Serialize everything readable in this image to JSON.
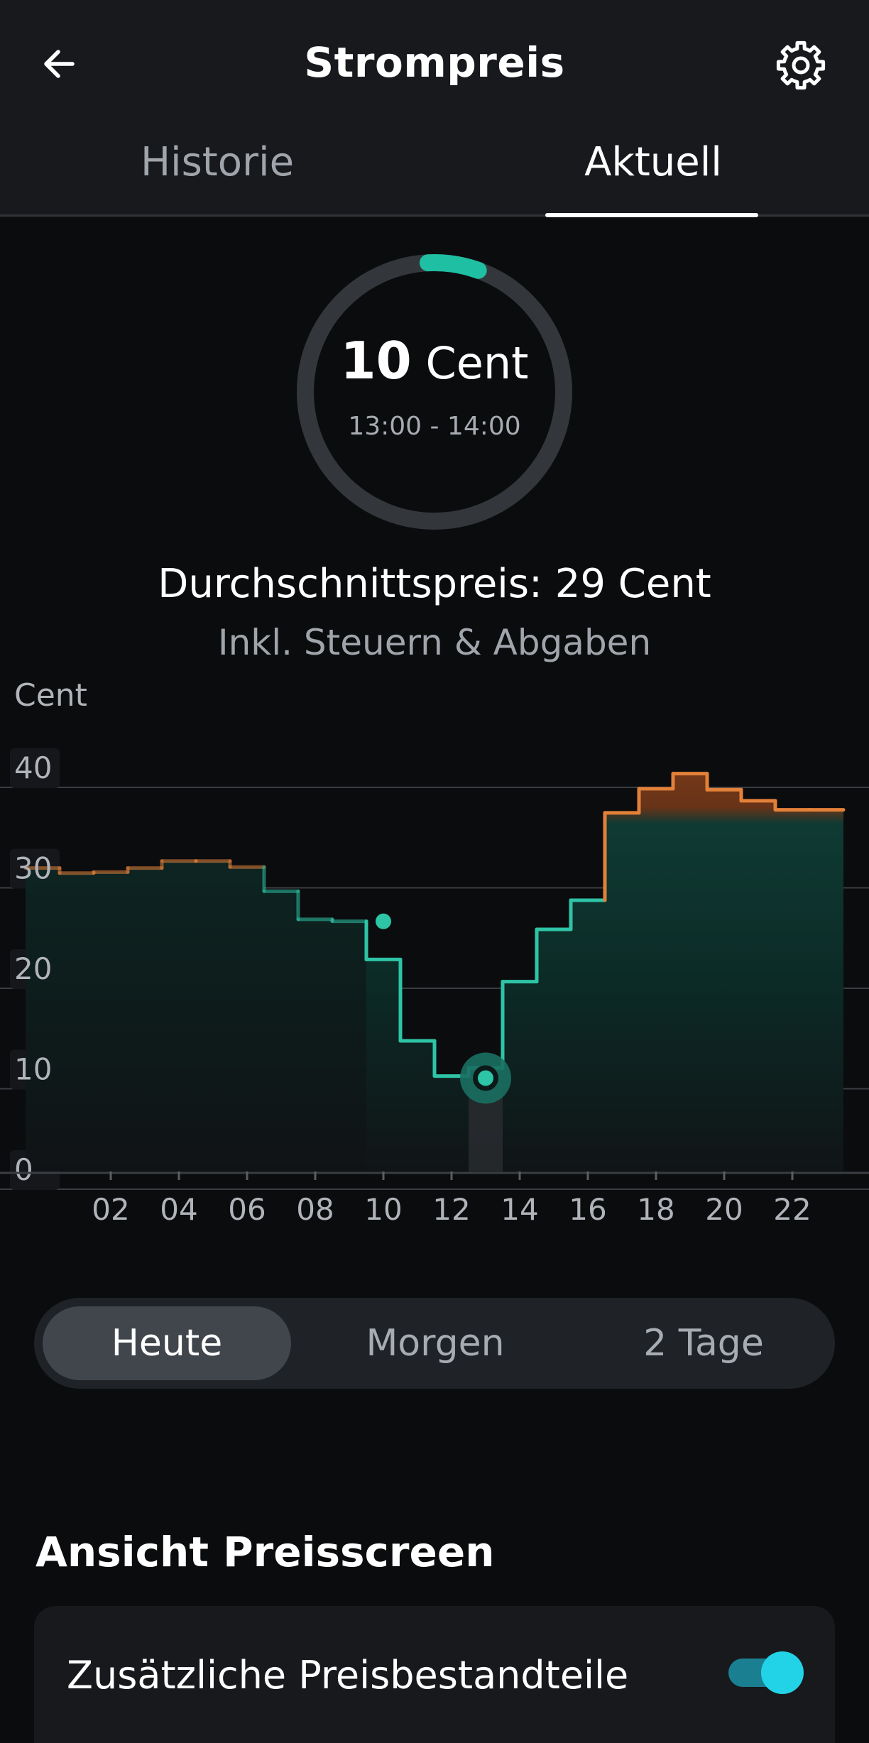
{
  "header": {
    "title": "Strompreis",
    "back_icon": "arrow-left-icon",
    "settings_icon": "gear-icon"
  },
  "tabs": [
    {
      "label": "Historie",
      "active": false
    },
    {
      "label": "Aktuell",
      "active": true
    }
  ],
  "gauge": {
    "value": "10",
    "unit": "Cent",
    "time_range": "13:00 - 14:00",
    "progress_fraction": 0.055,
    "accent_color": "#1fbfa3"
  },
  "average": {
    "text": "Durchschnittspreis: 29 Cent",
    "note": "Inkl. Steuern & Abgaben"
  },
  "chart_data": {
    "type": "line",
    "step": true,
    "ylabel": "Cent",
    "ylim": [
      0,
      40
    ],
    "ytick_labels": [
      "40",
      "30",
      "20",
      "10",
      "0"
    ],
    "xtick_labels": [
      "02",
      "04",
      "06",
      "08",
      "10",
      "12",
      "14",
      "16",
      "18",
      "20",
      "22"
    ],
    "hours": [
      0,
      1,
      2,
      3,
      4,
      5,
      6,
      7,
      8,
      9,
      10,
      11,
      12,
      13,
      14,
      15,
      16,
      17,
      18,
      19,
      20,
      21,
      22,
      23
    ],
    "values": [
      30.2,
      29.7,
      29.8,
      30.2,
      30.9,
      30.9,
      30.3,
      27.9,
      25.1,
      24.9,
      21.1,
      13.0,
      9.5,
      10.3,
      18.9,
      24.1,
      27.0,
      35.7,
      38.1,
      39.6,
      38.0,
      36.9,
      36.0,
      36.0
    ],
    "threshold": 29,
    "colors": {
      "below": "#2ec4a6",
      "above": "#e38139"
    },
    "current_hour": 13,
    "current_value": 10,
    "marker_point": {
      "x": 10.5,
      "y": 24.9
    }
  },
  "range_selector": {
    "options": [
      "Heute",
      "Morgen",
      "2 Tage"
    ],
    "selected": "Heute"
  },
  "settings": {
    "section_title": "Ansicht Preisscreen",
    "items": [
      {
        "label": "Zusätzliche Preisbestandteile",
        "enabled": true
      }
    ]
  }
}
